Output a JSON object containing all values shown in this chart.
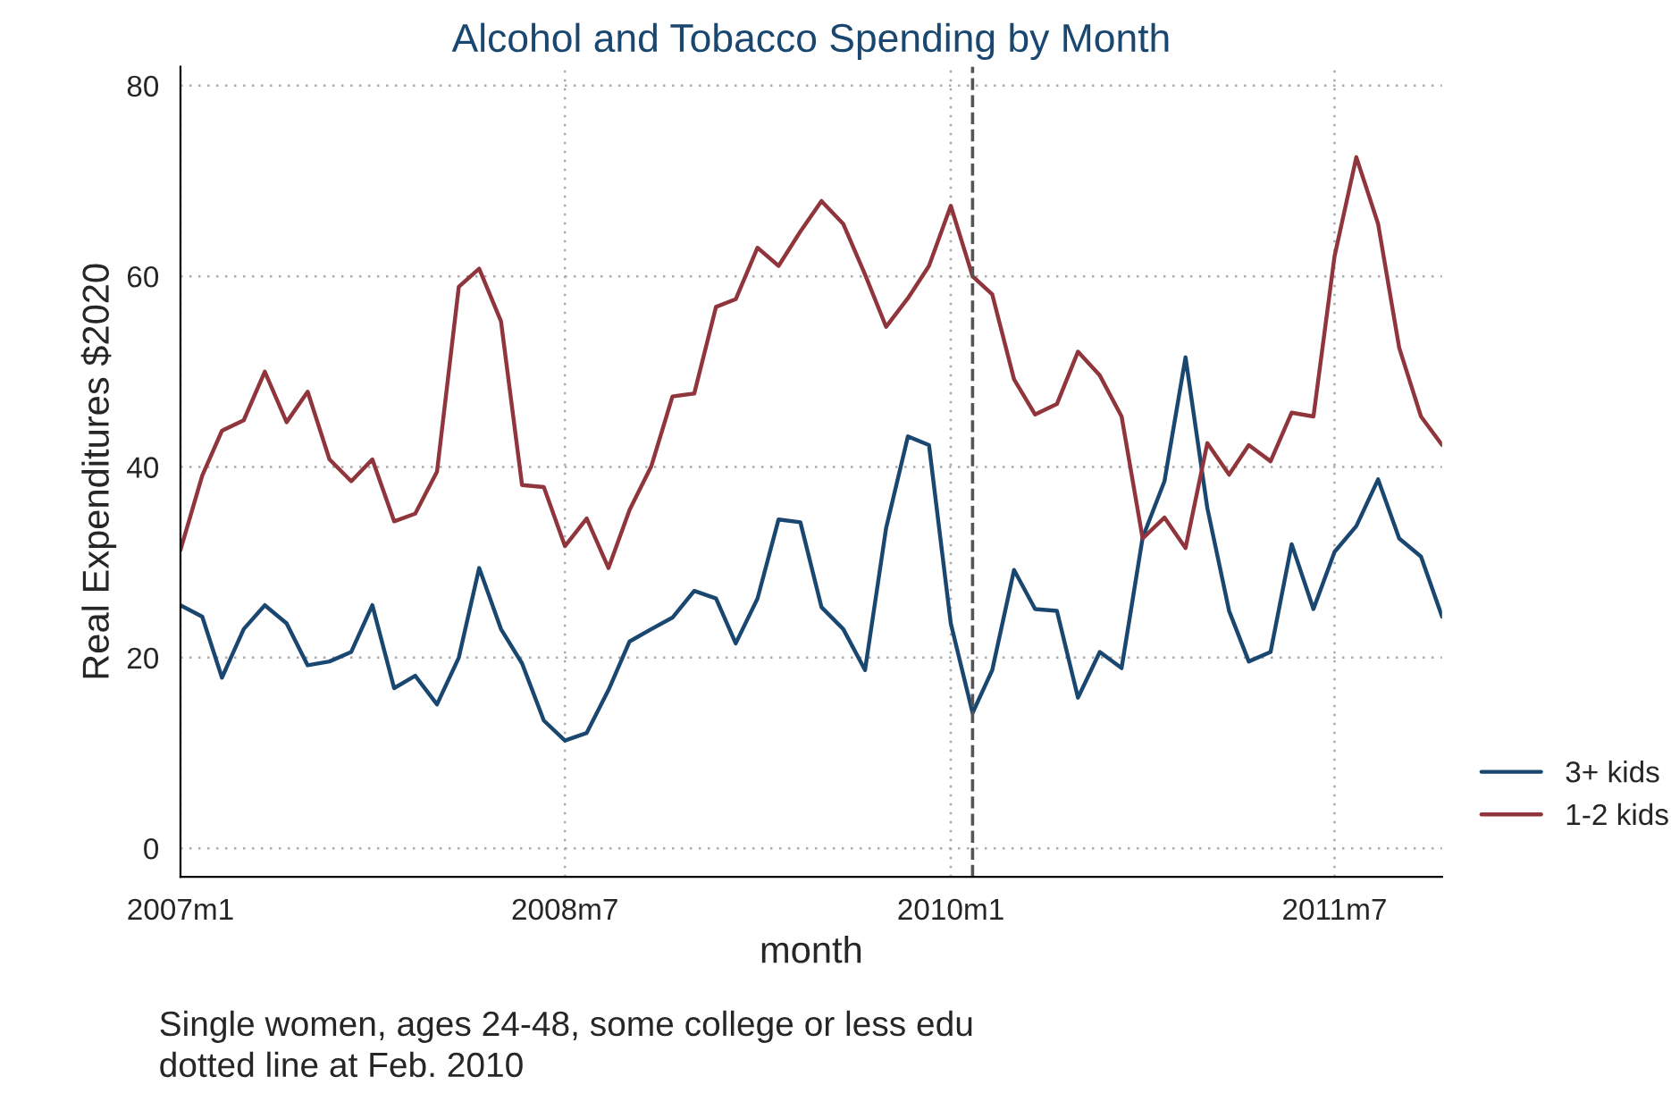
{
  "chart_data": {
    "type": "line",
    "title": "Alcohol and Tobacco Spending by Month",
    "xlabel": "month",
    "ylabel": "Real Expenditures $2020",
    "x": [
      "2007-01",
      "2007-02",
      "2007-03",
      "2007-04",
      "2007-05",
      "2007-06",
      "2007-07",
      "2007-08",
      "2007-09",
      "2007-10",
      "2007-11",
      "2007-12",
      "2008-01",
      "2008-02",
      "2008-03",
      "2008-04",
      "2008-05",
      "2008-06",
      "2008-07",
      "2008-08",
      "2008-09",
      "2008-10",
      "2008-11",
      "2008-12",
      "2009-01",
      "2009-02",
      "2009-03",
      "2009-04",
      "2009-05",
      "2009-06",
      "2009-07",
      "2009-08",
      "2009-09",
      "2009-10",
      "2009-11",
      "2009-12",
      "2010-01",
      "2010-02",
      "2010-03",
      "2010-04",
      "2010-05",
      "2010-06",
      "2010-07",
      "2010-08",
      "2010-09",
      "2010-10",
      "2010-11",
      "2010-12",
      "2011-01",
      "2011-02",
      "2011-03",
      "2011-04",
      "2011-05",
      "2011-06",
      "2011-07",
      "2011-08",
      "2011-09",
      "2011-10",
      "2011-11",
      "2011-12"
    ],
    "series": [
      {
        "name": "3+ kids",
        "color": "#1a476f",
        "values": [
          25.5,
          24.3,
          17.9,
          23,
          25.5,
          23.6,
          19.2,
          19.6,
          20.6,
          25.5,
          16.8,
          18.1,
          15.1,
          20,
          29.4,
          23,
          19.4,
          13.4,
          11.3,
          12.1,
          16.6,
          21.7,
          23,
          24.2,
          27,
          26.2,
          21.5,
          26.2,
          34.5,
          34.2,
          25.3,
          23,
          18.7,
          33.6,
          43.2,
          42.3,
          23.6,
          14.2,
          18.7,
          29.2,
          25.1,
          24.9,
          15.8,
          20.6,
          18.9,
          32.6,
          38.5,
          51.5,
          35.7,
          24.9,
          19.6,
          20.6,
          31.9,
          25.1,
          31.1,
          33.8,
          38.7,
          32.5,
          30.6,
          24.3
        ]
      },
      {
        "name": "1-2 kids",
        "color": "#90353b",
        "values": [
          31.3,
          39.1,
          43.8,
          44.9,
          50,
          44.7,
          47.9,
          40.8,
          38.5,
          40.8,
          34.3,
          35.1,
          39.5,
          58.9,
          60.8,
          55.3,
          38.1,
          37.9,
          31.7,
          34.6,
          29.4,
          35.5,
          40.1,
          47.4,
          47.7,
          56.8,
          57.6,
          63,
          61.1,
          64.7,
          67.9,
          65.5,
          60.2,
          54.7,
          57.7,
          61.1,
          67.4,
          60,
          58.1,
          49.2,
          45.5,
          46.6,
          52.1,
          49.6,
          45.3,
          32.5,
          34.7,
          31.5,
          42.5,
          39.2,
          42.3,
          40.6,
          45.7,
          45.3,
          62.1,
          72.5,
          65.5,
          52.5,
          45.3,
          42.3
        ]
      }
    ],
    "xlim": [
      "2007-01",
      "2011-12"
    ],
    "xticks": [
      {
        "value": "2007-01",
        "label": "2007m1"
      },
      {
        "value": "2008-07",
        "label": "2008m7"
      },
      {
        "value": "2010-01",
        "label": "2010m1"
      },
      {
        "value": "2011-07",
        "label": "2011m7"
      }
    ],
    "ylim": [
      -3,
      82
    ],
    "yticks": [
      0,
      20,
      40,
      60,
      80
    ],
    "ref_lines": [
      {
        "axis": "x",
        "value": "2010-02",
        "color": "#555555",
        "line_style": "dashed"
      }
    ],
    "grid": true,
    "legend": "right",
    "marker": "none",
    "line_style": "solid",
    "annotations": [
      "Single women, ages 24-48, some college or less edu",
      "dotted line at Feb. 2010"
    ]
  }
}
